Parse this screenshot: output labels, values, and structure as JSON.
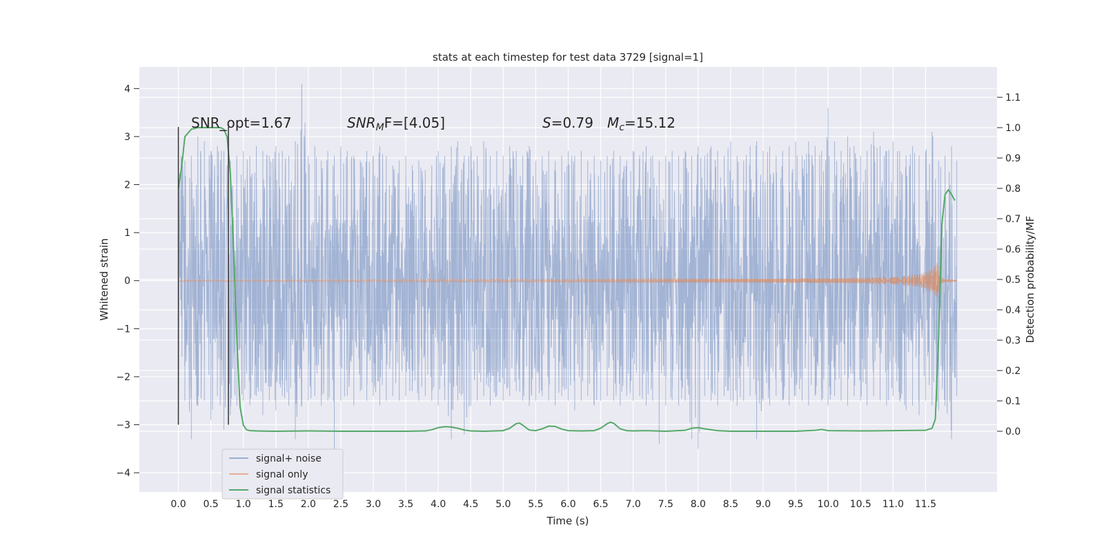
{
  "chart_data": {
    "type": "line",
    "title": "stats at each timestep for test data 3729 [signal=1]",
    "xlabel": "Time (s)",
    "ylabel": "Whitened strain",
    "y2label": "Detection probability/MF",
    "xlim": [
      -0.6,
      12.6
    ],
    "ylim": [
      -4.4,
      4.45
    ],
    "y2lim": [
      -0.2,
      1.2
    ],
    "x_end": 11.98,
    "grid": true,
    "xticks": [
      "0.0",
      "0.5",
      "1.0",
      "1.5",
      "2.0",
      "2.5",
      "3.0",
      "3.5",
      "4.0",
      "4.5",
      "5.0",
      "5.5",
      "6.0",
      "6.5",
      "7.0",
      "7.5",
      "8.0",
      "8.5",
      "9.0",
      "9.5",
      "10.0",
      "10.5",
      "11.0",
      "11.5"
    ],
    "yticks": [
      "4",
      "3",
      "2",
      "1",
      "0",
      "−1",
      "−2",
      "−3",
      "−4"
    ],
    "y2ticks": [
      "1.1",
      "1.0",
      "0.9",
      "0.8",
      "0.7",
      "0.6",
      "0.5",
      "0.4",
      "0.3",
      "0.2",
      "0.1",
      "0.0"
    ],
    "annotations": {
      "snr_opt": "SNR_opt=1.67",
      "snr_mf_sym": "SNR",
      "snr_mf_sub": "M",
      "snr_mf_rest": "F=[4.05]",
      "s_sym": "S",
      "s_val": "=0.79",
      "mc_sym": "M",
      "mc_sub": "c",
      "mc_val": "=15.12"
    },
    "legend": {
      "position": "lower-left"
    },
    "series": [
      {
        "name": "signal+ noise",
        "color": "#4c72b0",
        "kind": "noise",
        "envelope": {
          "x": [
            0.0,
            0.1,
            0.2,
            0.3,
            0.4,
            0.5,
            0.6,
            0.7,
            0.8,
            0.9,
            1.0,
            1.1,
            1.2,
            1.3,
            1.4,
            1.5,
            1.6,
            1.7,
            1.8,
            1.9,
            2.0,
            2.1,
            2.2,
            2.3,
            2.4,
            2.5,
            2.6,
            2.7,
            2.8,
            2.9,
            3.0,
            3.1,
            3.2,
            3.3,
            3.4,
            3.5,
            3.6,
            3.7,
            3.8,
            3.9,
            4.0,
            4.1,
            4.2,
            4.3,
            4.4,
            4.5,
            4.6,
            4.7,
            4.8,
            4.9,
            5.0,
            5.1,
            5.2,
            5.3,
            5.4,
            5.5,
            5.6,
            5.7,
            5.8,
            5.9,
            6.0,
            6.1,
            6.2,
            6.3,
            6.4,
            6.5,
            6.6,
            6.7,
            6.8,
            6.9,
            7.0,
            7.1,
            7.2,
            7.3,
            7.4,
            7.5,
            7.6,
            7.7,
            7.8,
            7.9,
            8.0,
            8.1,
            8.2,
            8.3,
            8.4,
            8.5,
            8.6,
            8.7,
            8.8,
            8.9,
            9.0,
            9.1,
            9.2,
            9.3,
            9.4,
            9.5,
            9.6,
            9.7,
            9.8,
            9.9,
            10.0,
            10.1,
            10.2,
            10.3,
            10.4,
            10.5,
            10.6,
            10.7,
            10.8,
            10.9,
            11.0,
            11.1,
            11.2,
            11.3,
            11.4,
            11.5,
            11.6,
            11.7,
            11.8,
            11.9,
            11.98
          ],
          "upper": [
            3.2,
            2.5,
            2.6,
            3.0,
            2.9,
            2.7,
            2.8,
            2.7,
            2.5,
            2.6,
            2.7,
            2.6,
            2.8,
            2.7,
            2.6,
            2.8,
            2.7,
            2.6,
            2.9,
            4.1,
            2.6,
            2.8,
            2.5,
            2.7,
            2.6,
            2.8,
            2.7,
            2.6,
            2.5,
            2.7,
            2.6,
            2.8,
            2.6,
            2.4,
            2.5,
            2.6,
            2.4,
            2.5,
            2.3,
            2.4,
            2.7,
            2.6,
            2.8,
            2.9,
            2.6,
            2.8,
            2.6,
            2.9,
            2.6,
            2.7,
            2.6,
            2.8,
            2.7,
            2.6,
            2.8,
            2.5,
            2.6,
            2.7,
            2.5,
            2.6,
            2.7,
            2.6,
            2.7,
            2.5,
            2.6,
            2.5,
            2.6,
            2.7,
            2.6,
            2.5,
            2.7,
            2.6,
            2.8,
            2.6,
            2.5,
            2.6,
            2.7,
            2.6,
            2.7,
            2.6,
            2.8,
            2.6,
            2.8,
            2.7,
            2.6,
            2.9,
            2.6,
            2.5,
            2.8,
            2.9,
            2.7,
            2.8,
            2.6,
            2.7,
            2.8,
            2.9,
            2.6,
            2.9,
            2.8,
            2.7,
            3.6,
            2.9,
            2.7,
            3.0,
            2.8,
            2.6,
            2.7,
            3.1,
            2.8,
            2.7,
            2.9,
            2.7,
            2.6,
            2.8,
            2.6,
            2.7,
            3.1,
            2.5,
            2.6,
            2.8,
            2.5
          ],
          "lower": [
            -3.0,
            -2.5,
            -3.3,
            -2.6,
            -2.5,
            -2.9,
            -2.4,
            -3.1,
            -2.8,
            -2.6,
            -2.5,
            -2.6,
            -2.4,
            -2.8,
            -2.5,
            -2.7,
            -2.4,
            -2.6,
            -3.3,
            -2.6,
            -2.5,
            -2.4,
            -2.6,
            -2.5,
            -3.9,
            -2.5,
            -2.4,
            -2.6,
            -2.3,
            -2.5,
            -2.4,
            -2.6,
            -2.5,
            -2.4,
            -2.5,
            -2.4,
            -2.3,
            -2.5,
            -2.4,
            -2.5,
            -2.6,
            -2.5,
            -3.3,
            -2.5,
            -3.2,
            -2.6,
            -2.5,
            -2.4,
            -2.6,
            -2.4,
            -2.5,
            -2.4,
            -2.3,
            -2.5,
            -2.6,
            -2.5,
            -2.4,
            -2.5,
            -2.6,
            -2.4,
            -2.5,
            -2.7,
            -2.5,
            -2.4,
            -2.6,
            -2.5,
            -2.4,
            -2.5,
            -2.6,
            -2.4,
            -2.5,
            -2.4,
            -2.6,
            -2.5,
            -3.4,
            -2.6,
            -2.5,
            -2.6,
            -2.5,
            -3.3,
            -3.5,
            -2.4,
            -2.5,
            -2.6,
            -2.4,
            -2.5,
            -2.6,
            -2.5,
            -2.4,
            -3.3,
            -2.5,
            -2.6,
            -2.4,
            -2.5,
            -2.6,
            -2.4,
            -2.5,
            -2.6,
            -2.4,
            -2.5,
            -2.6,
            -2.4,
            -2.5,
            -2.6,
            -2.4,
            -2.5,
            -2.6,
            -2.4,
            -2.5,
            -2.6,
            -2.4,
            -2.5,
            -2.7,
            -2.6,
            -2.8,
            -2.5,
            -2.6,
            -2.7,
            -2.6,
            -3.3,
            -2.4
          ]
        }
      },
      {
        "name": "signal only",
        "color": "#dd8452",
        "kind": "chirp",
        "amplitude_envelope": {
          "x": [
            0.0,
            2.0,
            4.0,
            6.0,
            8.0,
            9.0,
            10.0,
            10.5,
            11.0,
            11.2,
            11.4,
            11.5,
            11.6,
            11.65,
            11.68,
            11.7,
            11.72,
            11.8,
            11.98
          ],
          "amp": [
            0.02,
            0.02,
            0.03,
            0.03,
            0.04,
            0.04,
            0.05,
            0.06,
            0.08,
            0.1,
            0.14,
            0.18,
            0.25,
            0.32,
            0.38,
            0.3,
            0.08,
            0.03,
            0.02
          ]
        }
      },
      {
        "name": "signal statistics",
        "color": "#55a868",
        "kind": "line",
        "axis": "y2",
        "x": [
          0.0,
          0.05,
          0.1,
          0.2,
          0.3,
          0.4,
          0.5,
          0.6,
          0.65,
          0.7,
          0.75,
          0.8,
          0.85,
          0.9,
          0.95,
          1.0,
          1.05,
          1.1,
          1.2,
          1.5,
          2.0,
          2.5,
          3.0,
          3.5,
          3.8,
          3.9,
          4.0,
          4.1,
          4.2,
          4.3,
          4.4,
          4.5,
          4.7,
          5.0,
          5.1,
          5.2,
          5.25,
          5.3,
          5.4,
          5.5,
          5.6,
          5.7,
          5.8,
          5.9,
          6.0,
          6.2,
          6.4,
          6.5,
          6.6,
          6.65,
          6.7,
          6.8,
          6.9,
          7.0,
          7.2,
          7.5,
          7.8,
          7.9,
          8.0,
          8.1,
          8.3,
          8.5,
          9.0,
          9.5,
          9.8,
          9.9,
          10.0,
          10.5,
          11.0,
          11.5,
          11.6,
          11.65,
          11.7,
          11.75,
          11.8,
          11.85,
          11.9,
          11.95
        ],
        "y": [
          0.8,
          0.87,
          0.97,
          0.995,
          1.0,
          1.0,
          1.0,
          1.0,
          1.0,
          0.995,
          0.97,
          0.85,
          0.6,
          0.3,
          0.08,
          0.02,
          0.005,
          0.002,
          0.001,
          0.0,
          0.001,
          0.0,
          0.0,
          0.0,
          0.001,
          0.005,
          0.012,
          0.015,
          0.014,
          0.01,
          0.004,
          0.001,
          0.0,
          0.002,
          0.01,
          0.025,
          0.027,
          0.02,
          0.004,
          0.002,
          0.008,
          0.017,
          0.016,
          0.007,
          0.002,
          0.001,
          0.002,
          0.01,
          0.025,
          0.03,
          0.026,
          0.008,
          0.002,
          0.001,
          0.002,
          0.0,
          0.003,
          0.01,
          0.012,
          0.008,
          0.002,
          0.0,
          0.0,
          0.0,
          0.003,
          0.006,
          0.002,
          0.001,
          0.002,
          0.003,
          0.01,
          0.04,
          0.3,
          0.68,
          0.78,
          0.795,
          0.78,
          0.76
        ]
      }
    ]
  }
}
